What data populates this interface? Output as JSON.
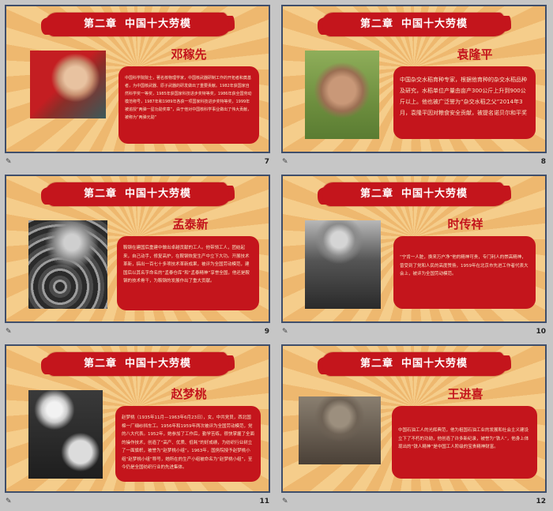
{
  "slides": [
    {
      "chapter": "第二章",
      "title": "中国十大劳模",
      "name": "邓稼先",
      "text": "中国科学院院士，著名核物理学家，中国核武器研制工作的开拓者和奠基者，为中国核武器、原子武器的研发做出了重要贡献。1982年获国家自然科学奖一等奖，1985年获国家科技进步奖特等奖，1986年获全国劳动模范称号，1987年和1989年各获一项国家科技进步奖特等奖，1999年被追授“两弹一星功勋奖章”，由于他对中国核科学事业做出了伟大贡献，被称为“两弹元勋”",
      "page": "7"
    },
    {
      "chapter": "第二章",
      "title": "中国十大劳模",
      "name": "袁隆平",
      "text": "中国杂交水稻育种专家，根据他育种的杂交水稻品种及研究，水稻单位产量由亩产300公斤上升到900公斤以上。他也被广泛誉为“杂交水稻之父”2014年3月，袁隆平因对粮食安全贡献，被提名诺贝尔和平奖",
      "page": "8"
    },
    {
      "chapter": "第二章",
      "title": "中国十大劳模",
      "name": "孟泰新",
      "text": "鞍钢在建国后重建中做出卓越贡献的工人。他带领工人，团结起来，自己动手，修复高炉，在鞍钢恢复生产中立下大功。开展技术革新，搞出一百七十多项技术革新成果，被评为全国劳动模范，建国后以其名字命名的“孟泰仓库”和“孟泰精神”享誉全国，他还是鞍钢的技术骨干，为鞍钢的发展作出了重大贡献。",
      "page": "9"
    },
    {
      "chapter": "第二章",
      "title": "中国十大劳模",
      "name": "时传祥",
      "text": "“宁肯一人脏，换来万户净”他的精神可贵，专门利人的崇高精神，曾受到了党和人民的高度赞扬，1959年在北京市先进工作者代表大会上，被评为全国劳动模范。",
      "page": "10"
    },
    {
      "chapter": "第二章",
      "title": "中国十大劳模",
      "name": "赵梦桃",
      "text": "赵梦桃（1935年11月—1963年6月23日），女，中共党员，西北国棉一厂细纱挡车工。1956年和1959年两次被评为全国劳动模范，党的八大代表。1952年，她参加了工作后，勤学苦练，很快掌握了全面的操作技术，创造了“高产、优质、低耗”的好成绩，为纺织行业树立了一面旗帜，被誉为“赵梦桃小组”。1963年，国务院授予赵梦桃小组“赵梦桃小组”称号，她所在的生产小组被命名为“赵梦桃小组”，至今仍是全国纺织行业的先进集体。",
      "page": "11"
    },
    {
      "chapter": "第二章",
      "title": "中国十大劳模",
      "name": "王进喜",
      "text": "中国石油工人的光辉典范，他为祖国石油工业的发展和社会主义建设立下了不朽的功勋，他创造了许多新纪录，被誉为“铁人”，他身上体现出的“铁人精神”是中国工人阶级的宝贵精神财富。",
      "page": "12"
    }
  ],
  "footer_icon": "slide-notes-icon",
  "colors": {
    "banner": "#c4151c",
    "bg": "#f2c27c",
    "frame": "#3f4e6a"
  }
}
